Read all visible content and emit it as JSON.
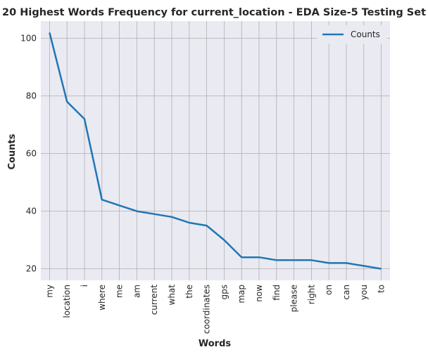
{
  "chart_data": {
    "type": "line",
    "title": "20 Highest Words Frequency for current_location - EDA Size-5 Testing Set",
    "xlabel": "Words",
    "ylabel": "Counts",
    "categories": [
      "my",
      "location",
      "i",
      "where",
      "me",
      "am",
      "current",
      "what",
      "the",
      "coordinates",
      "gps",
      "map",
      "now",
      "find",
      "please",
      "right",
      "on",
      "can",
      "you",
      "to"
    ],
    "series": [
      {
        "name": "Counts",
        "color": "#1f77b4",
        "values": [
          102,
          78,
          72,
          44,
          42,
          40,
          39,
          38,
          36,
          35,
          30,
          24,
          24,
          23,
          23,
          23,
          22,
          22,
          21,
          20
        ]
      }
    ],
    "ylim": [
      16,
      106
    ],
    "yticks": [
      20,
      40,
      60,
      80,
      100
    ],
    "grid": true,
    "legend_position": "upper right",
    "colors": {
      "plot_bg": "#eaeaf2",
      "grid": "#b0b0b0"
    }
  }
}
